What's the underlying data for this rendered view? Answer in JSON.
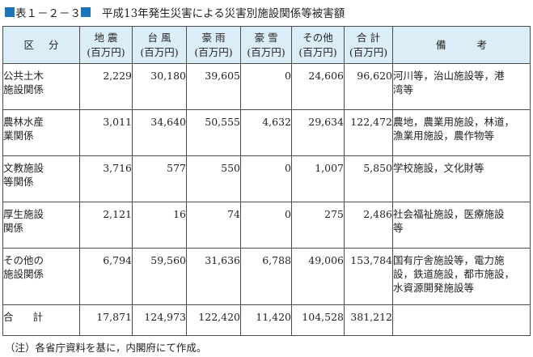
{
  "caption": {
    "label": "表１－２－３",
    "title": "平成13年発生災害による災害別施設関係等被害額",
    "accent_color": "#1a75bc"
  },
  "table": {
    "header_bg": "#dbeef7",
    "headers": [
      {
        "line1": "区分",
        "line2": ""
      },
      {
        "line1": "地 震",
        "line2": "(百万円)"
      },
      {
        "line1": "台 風",
        "line2": "(百万円)"
      },
      {
        "line1": "豪 雨",
        "line2": "(百万円)"
      },
      {
        "line1": "豪 雪",
        "line2": "(百万円)"
      },
      {
        "line1": "その他",
        "line2": "(百万円)"
      },
      {
        "line1": "合 計",
        "line2": "(百万円)"
      },
      {
        "line1": "備考",
        "line2": ""
      }
    ],
    "rows": [
      {
        "category": [
          "公共土木",
          "施設関係"
        ],
        "values": [
          "2,229",
          "30,180",
          "39,605",
          "0",
          "24,606",
          "96,620"
        ],
        "note": [
          "河川等，治山施設等，港",
          "湾等"
        ]
      },
      {
        "category": [
          "農林水産",
          "業関係"
        ],
        "values": [
          "3,011",
          "34,640",
          "50,555",
          "4,632",
          "29,634",
          "122,472"
        ],
        "note": [
          "農地，農業用施設，林道，",
          "漁業用施設，農作物等"
        ]
      },
      {
        "category": [
          "文教施設",
          "等関係"
        ],
        "values": [
          "3,716",
          "577",
          "550",
          "0",
          "1,007",
          "5,850"
        ],
        "note": [
          "学校施設，文化財等"
        ]
      },
      {
        "category": [
          "厚生施設",
          "関係"
        ],
        "values": [
          "2,121",
          "16",
          "74",
          "0",
          "275",
          "2,486"
        ],
        "note": [
          "社会福祉施設，医療施設",
          "等"
        ]
      },
      {
        "category": [
          "その他の",
          "施設関係"
        ],
        "values": [
          "6,794",
          "59,560",
          "31,636",
          "6,788",
          "49,006",
          "153,784"
        ],
        "note": [
          "国有庁舎施設等，電力施",
          "設，鉄道施設，都市施設，",
          "水資源開発施設等"
        ]
      }
    ],
    "total": {
      "category": "合計",
      "values": [
        "17,871",
        "124,973",
        "122,420",
        "11,420",
        "104,528",
        "381,212"
      ],
      "note": ""
    }
  },
  "footnote": "（注）各省庁資料を基に，内閣府にて作成。"
}
